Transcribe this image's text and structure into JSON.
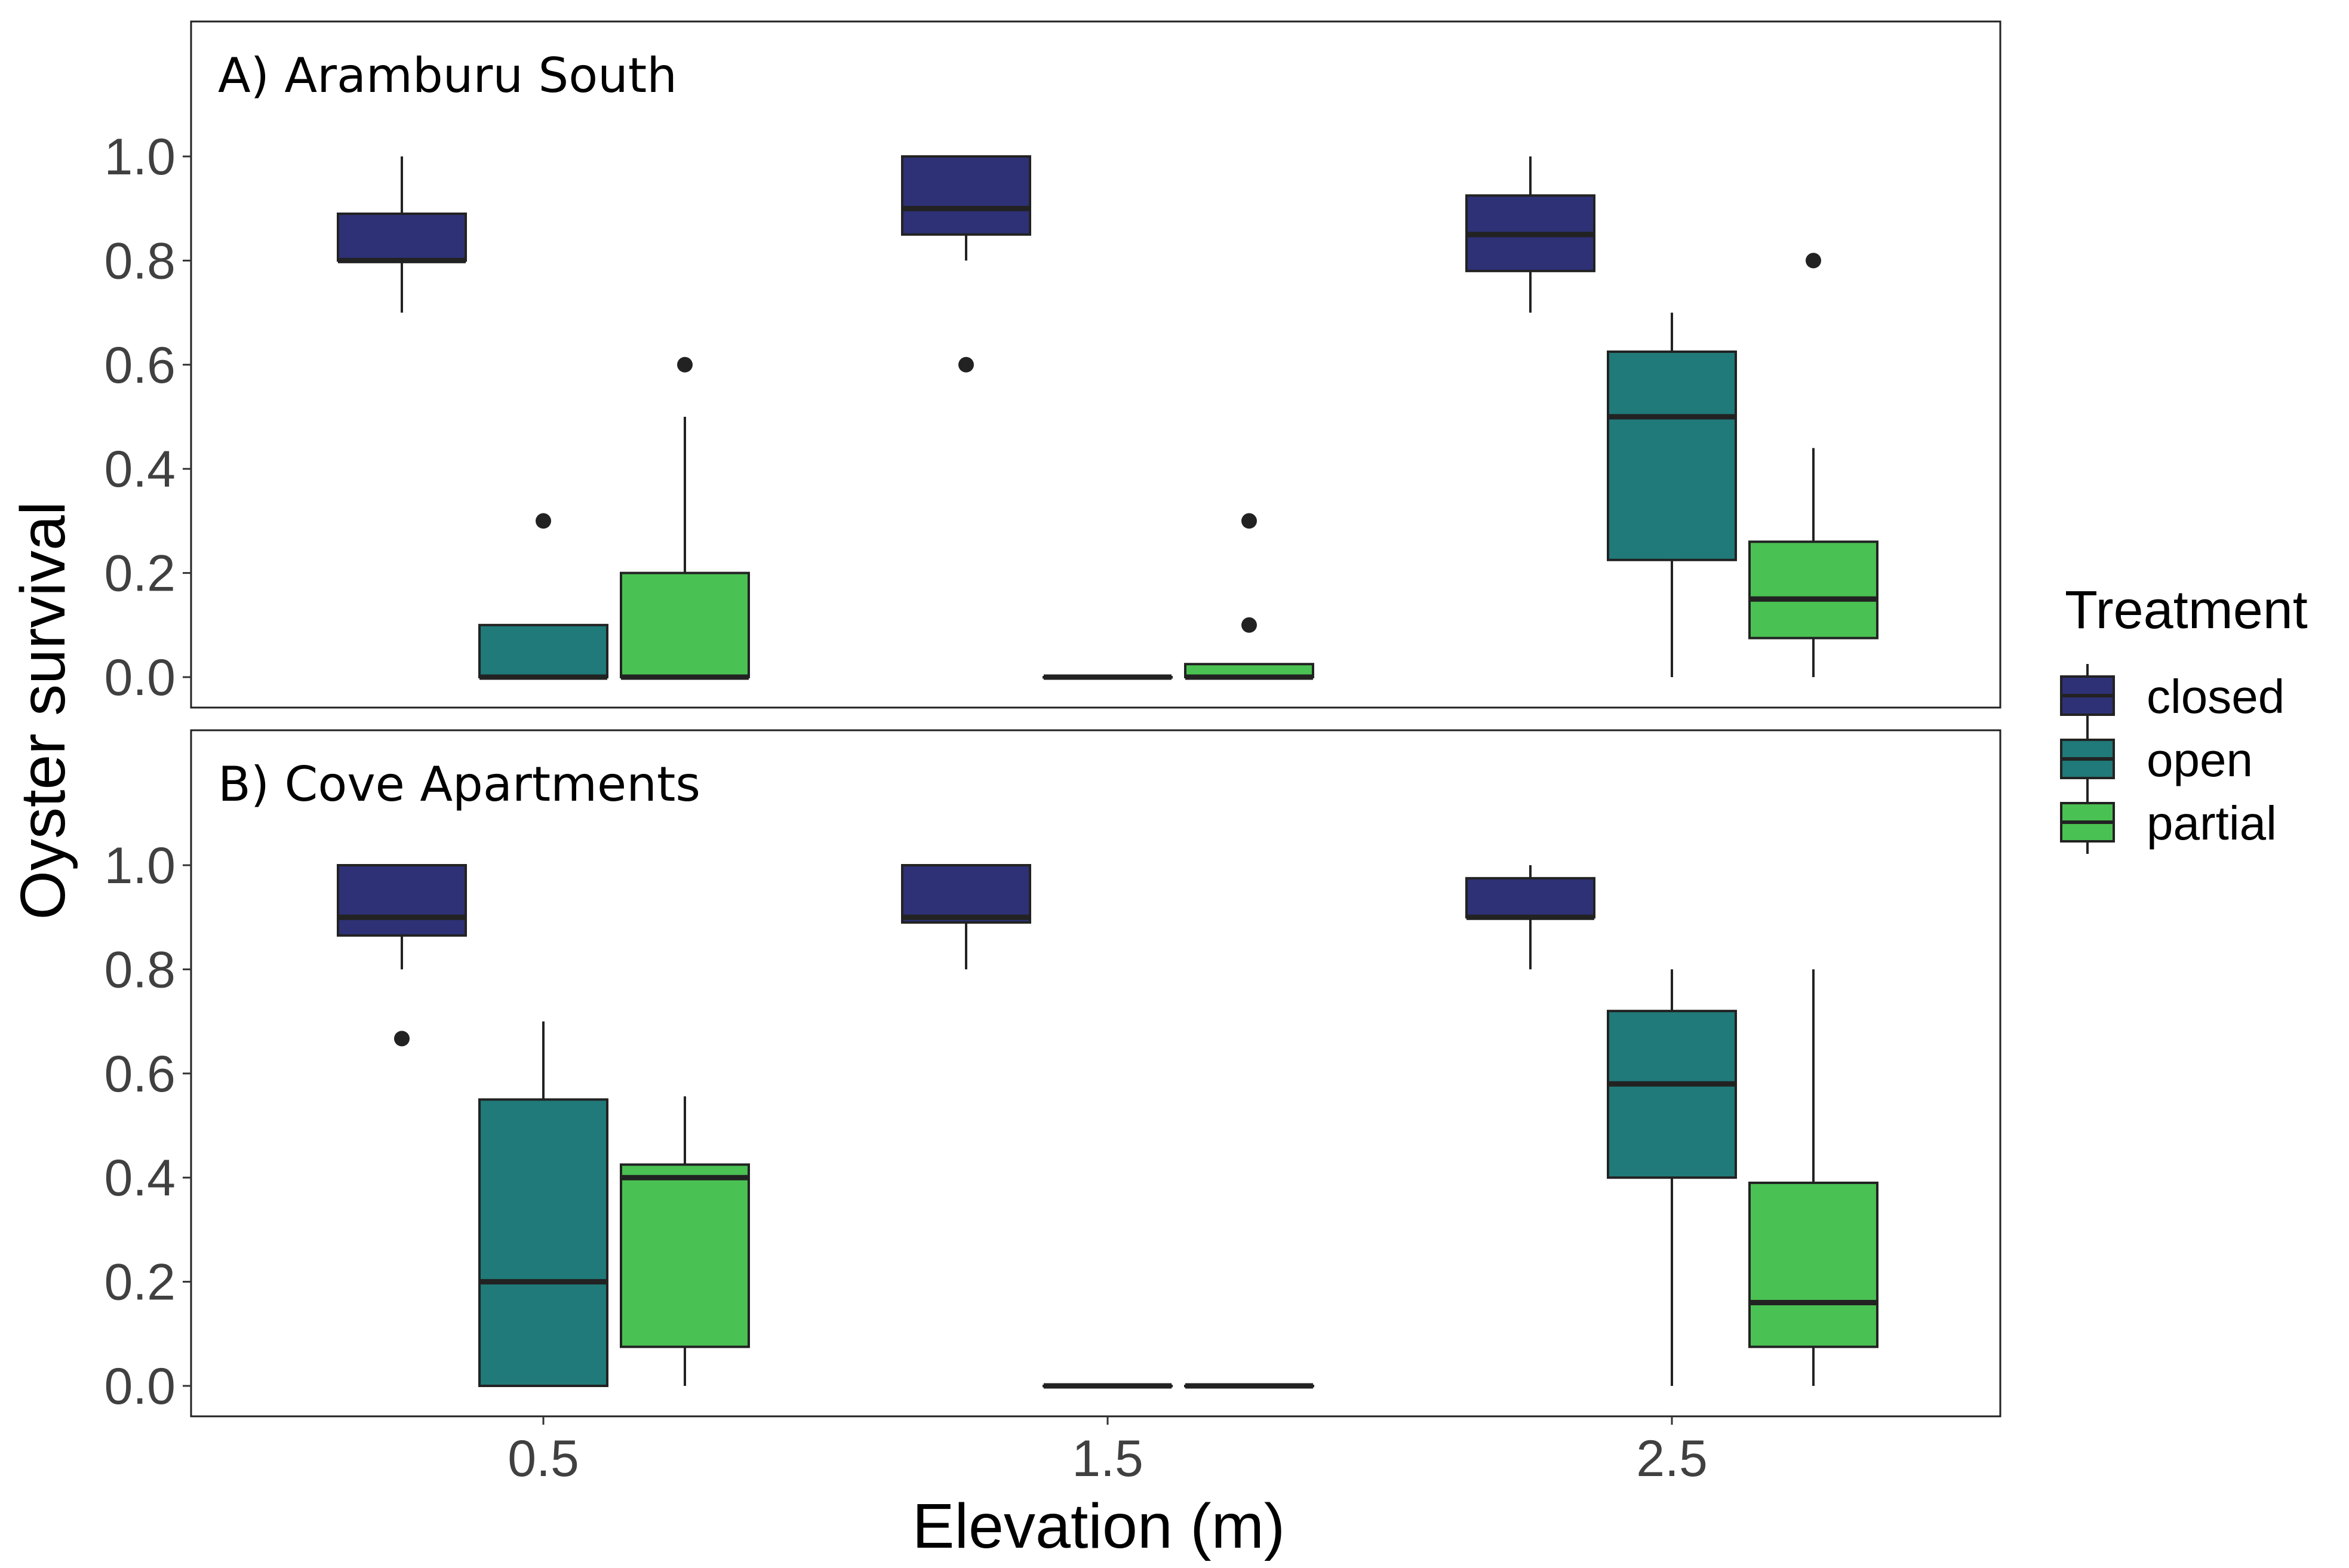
{
  "chart_data": {
    "type": "box",
    "xlabel": "Elevation (m)",
    "ylabel": "Oyster survival",
    "x_categories": [
      "0.5",
      "1.5",
      "2.5"
    ],
    "y_ticks": [
      "0.0",
      "0.2",
      "0.4",
      "0.6",
      "0.8",
      "1.0"
    ],
    "ylim": [
      -0.05,
      1.25
    ],
    "legend": {
      "title": "Treatment",
      "position": "right",
      "entries": [
        {
          "name": "closed",
          "color": "#2e3176"
        },
        {
          "name": "open",
          "color": "#1f7a79"
        },
        {
          "name": "partial",
          "color": "#4ac153"
        }
      ]
    },
    "panels": [
      {
        "title": "A) Aramburu South",
        "boxes": [
          {
            "x": "0.5",
            "treatment": "closed",
            "min": 0.7,
            "q1": 0.8,
            "median": 0.8,
            "q3": 0.89,
            "max": 1.0,
            "outliers": []
          },
          {
            "x": "0.5",
            "treatment": "open",
            "min": 0.0,
            "q1": 0.0,
            "median": 0.0,
            "q3": 0.1,
            "max": 0.1,
            "outliers": [
              0.3
            ]
          },
          {
            "x": "0.5",
            "treatment": "partial",
            "min": 0.0,
            "q1": 0.0,
            "median": 0.0,
            "q3": 0.2,
            "max": 0.5,
            "outliers": [
              0.6
            ]
          },
          {
            "x": "1.5",
            "treatment": "closed",
            "min": 0.8,
            "q1": 0.85,
            "median": 0.9,
            "q3": 1.0,
            "max": 1.0,
            "outliers": [
              0.6
            ]
          },
          {
            "x": "1.5",
            "treatment": "open",
            "min": 0.0,
            "q1": 0.0,
            "median": 0.0,
            "q3": 0.0,
            "max": 0.0,
            "outliers": []
          },
          {
            "x": "1.5",
            "treatment": "partial",
            "min": 0.0,
            "q1": 0.0,
            "median": 0.0,
            "q3": 0.025,
            "max": 0.025,
            "outliers": [
              0.1,
              0.3
            ]
          },
          {
            "x": "2.5",
            "treatment": "closed",
            "min": 0.7,
            "q1": 0.78,
            "median": 0.85,
            "q3": 0.925,
            "max": 1.0,
            "outliers": []
          },
          {
            "x": "2.5",
            "treatment": "open",
            "min": 0.0,
            "q1": 0.225,
            "median": 0.5,
            "q3": 0.625,
            "max": 0.7,
            "outliers": []
          },
          {
            "x": "2.5",
            "treatment": "partial",
            "min": 0.0,
            "q1": 0.075,
            "median": 0.15,
            "q3": 0.26,
            "max": 0.44,
            "outliers": [
              0.8
            ]
          }
        ]
      },
      {
        "title": "B) Cove Apartments",
        "boxes": [
          {
            "x": "0.5",
            "treatment": "closed",
            "min": 0.8,
            "q1": 0.865,
            "median": 0.9,
            "q3": 1.0,
            "max": 1.0,
            "outliers": [
              0.667
            ]
          },
          {
            "x": "0.5",
            "treatment": "open",
            "min": 0.0,
            "q1": 0.0,
            "median": 0.2,
            "q3": 0.55,
            "max": 0.7,
            "outliers": []
          },
          {
            "x": "0.5",
            "treatment": "partial",
            "min": 0.0,
            "q1": 0.075,
            "median": 0.4,
            "q3": 0.425,
            "max": 0.556,
            "outliers": []
          },
          {
            "x": "1.5",
            "treatment": "closed",
            "min": 0.8,
            "q1": 0.89,
            "median": 0.9,
            "q3": 1.0,
            "max": 1.0,
            "outliers": []
          },
          {
            "x": "1.5",
            "treatment": "open",
            "min": 0.0,
            "q1": 0.0,
            "median": 0.0,
            "q3": 0.0,
            "max": 0.0,
            "outliers": []
          },
          {
            "x": "1.5",
            "treatment": "partial",
            "min": 0.0,
            "q1": 0.0,
            "median": 0.0,
            "q3": 0.0,
            "max": 0.0,
            "outliers": []
          },
          {
            "x": "2.5",
            "treatment": "closed",
            "min": 0.8,
            "q1": 0.9,
            "median": 0.9,
            "q3": 0.975,
            "max": 1.0,
            "outliers": []
          },
          {
            "x": "2.5",
            "treatment": "open",
            "min": 0.0,
            "q1": 0.4,
            "median": 0.58,
            "q3": 0.72,
            "max": 0.8,
            "outliers": []
          },
          {
            "x": "2.5",
            "treatment": "partial",
            "min": 0.0,
            "q1": 0.075,
            "median": 0.16,
            "q3": 0.39,
            "max": 0.8,
            "outliers": []
          }
        ]
      }
    ]
  }
}
